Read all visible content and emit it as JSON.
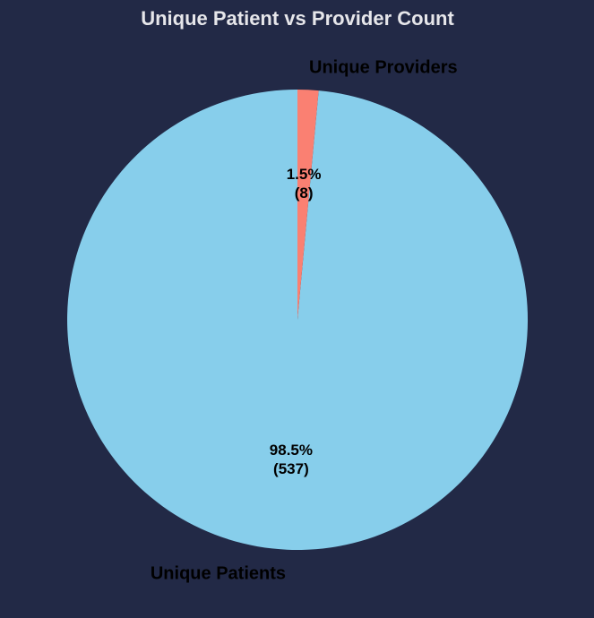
{
  "chart_data": {
    "type": "pie",
    "title": "Unique Patient vs Provider Count",
    "categories": [
      "Unique Patients",
      "Unique Providers"
    ],
    "values": [
      537,
      8
    ],
    "percent_labels": [
      "98.5%",
      "1.5%"
    ],
    "count_labels": [
      "(537)",
      "(8)"
    ],
    "colors": [
      "#87ceeb",
      "#fa8072"
    ],
    "legend": "none"
  },
  "theme": {
    "background": "#222946",
    "title_color": "#e6e6ea",
    "label_color": "#000000"
  }
}
